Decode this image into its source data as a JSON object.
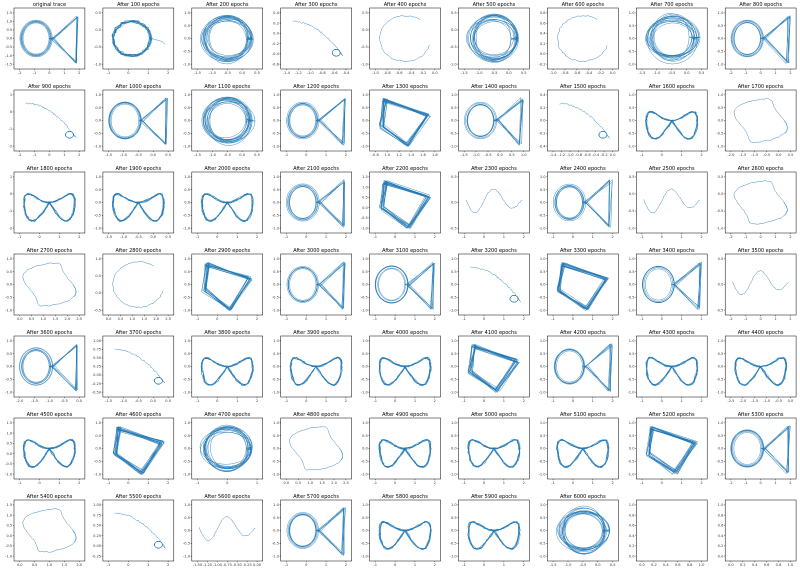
{
  "chart_data": {
    "type": "line",
    "layout": "small-multiples 9 columns x 7 rows",
    "line_color": "#1f77b4",
    "panels": [
      {
        "title": "original trace",
        "shape": "loop-triangle",
        "xticks": [
          "-2",
          "-1",
          "0",
          "1",
          "2"
        ],
        "yticks": [
          "1.5",
          "1.0",
          "0.5",
          "0.0",
          "-0.5",
          "-1.0",
          "-1.5"
        ]
      },
      {
        "title": "After 100 epochs",
        "shape": "blob-small",
        "xticks": [
          "-1",
          "0",
          "1",
          "2"
        ],
        "yticks": [
          "0.5",
          "0.0",
          "-0.5",
          "-1.0"
        ]
      },
      {
        "title": "After 200 epochs",
        "shape": "dense-circle",
        "xticks": [
          "-1.5",
          "-1.0",
          "-0.5",
          "0.0",
          "0.5"
        ],
        "yticks": [
          "1.0",
          "0.5",
          "0.0",
          "-0.5",
          "-1.0"
        ]
      },
      {
        "title": "After 300 epochs",
        "shape": "spiral-tail",
        "xticks": [
          "-1.4",
          "-1.2",
          "-1.0",
          "-0.8",
          "-0.6",
          "-0.4"
        ],
        "yticks": [
          "0.4",
          "0.2",
          "0.0",
          "-0.2",
          "-0.4",
          "-0.6"
        ]
      },
      {
        "title": "After 400 epochs",
        "shape": "open-arc",
        "xticks": [
          "-1.0",
          "-0.8",
          "-0.6",
          "-0.4",
          "-0.2",
          "0.0"
        ],
        "yticks": [
          "0.5",
          "0.0",
          "-0.5",
          "-1.0"
        ]
      },
      {
        "title": "After 500 epochs",
        "shape": "dense-circle",
        "xticks": [
          "-1.5",
          "-1.0",
          "-0.5",
          "0.0",
          "0.5"
        ],
        "yticks": [
          "0.5",
          "0.0",
          "-0.5",
          "-1.0"
        ]
      },
      {
        "title": "After 600 epochs",
        "shape": "open-arc",
        "xticks": [
          "-1.0",
          "-0.8",
          "-0.6",
          "-0.4",
          "-0.2",
          "0.0"
        ],
        "yticks": [
          "0.8",
          "0.6",
          "0.4",
          "0.2",
          "0.0",
          "-0.2"
        ]
      },
      {
        "title": "After 700 epochs",
        "shape": "dense-circle",
        "xticks": [
          "-1.5",
          "-1.0",
          "-0.5",
          "0.0",
          "0.5"
        ],
        "yticks": [
          "1.0",
          "0.5",
          "0.0",
          "-0.5",
          "-1.0"
        ]
      },
      {
        "title": "After 800 epochs",
        "shape": "loop-triangle",
        "xticks": [
          "-2",
          "-1",
          "0",
          "1",
          "2"
        ],
        "yticks": [
          "1.0",
          "0.5",
          "0.0",
          "-0.5",
          "-1.0"
        ]
      },
      {
        "title": "After 900 epochs",
        "shape": "spiral-tail",
        "xticks": [
          "-2",
          "-1",
          "0",
          "1",
          "2"
        ],
        "yticks": [
          "1",
          "0",
          "-1",
          "-2"
        ]
      },
      {
        "title": "After 1000 epochs",
        "shape": "loop-triangle",
        "xticks": [
          "-1.5",
          "-1.0",
          "-0.5",
          "0.0",
          "0.5"
        ],
        "yticks": [
          "1.0",
          "0.5",
          "0.0",
          "-0.5",
          "-1.0"
        ]
      },
      {
        "title": "After 1100 epochs",
        "shape": "dense-circle",
        "xticks": [
          "-1.5",
          "-1.0",
          "-0.5",
          "0.0",
          "0.5"
        ],
        "yticks": [
          "1.0",
          "0.5",
          "0.0",
          "-0.5",
          "-1.0"
        ]
      },
      {
        "title": "After 1200 epochs",
        "shape": "loop-triangle",
        "xticks": [
          "-1",
          "0",
          "1",
          "2"
        ],
        "yticks": [
          "1.0",
          "0.5",
          "0.0",
          "-0.5",
          "-1.0"
        ]
      },
      {
        "title": "After 1300 epochs",
        "shape": "dense-triangle",
        "xticks": [
          "-0.8",
          "1.0",
          "1.2",
          "1.4",
          "1.6",
          "1.8"
        ],
        "yticks": [
          "1.0",
          "0.5",
          "0.0",
          "-0.5",
          "-1.0"
        ]
      },
      {
        "title": "After 1400 epochs",
        "shape": "loop-triangle",
        "xticks": [
          "-1.5",
          "-1.0",
          "-0.5",
          "0.0",
          "0.5",
          "1.0"
        ],
        "yticks": [
          "1.0",
          "0.5",
          "0.0",
          "-0.5",
          "-1.0"
        ]
      },
      {
        "title": "After 1500 epochs",
        "shape": "spiral-tail",
        "xticks": [
          "-1.4",
          "-1.2",
          "-1.0",
          "-0.8",
          "-0.6",
          "-0.4",
          "-0.2",
          "0.0"
        ],
        "yticks": [
          "0.4",
          "0.2",
          "0.0",
          "-0.2",
          "-0.4"
        ]
      },
      {
        "title": "After 1600 epochs",
        "shape": "butterfly",
        "xticks": [
          "-1",
          "0",
          "1",
          "2"
        ],
        "yticks": [
          "1.0",
          "0.5",
          "0.0",
          "-0.5",
          "-1.0"
        ]
      },
      {
        "title": "After 1700 epochs",
        "shape": "open-loop",
        "xticks": [
          "-2.0",
          "-1.5",
          "-1.0",
          "-0.5",
          "0.0",
          "0.5"
        ],
        "yticks": [
          "1.0",
          "0.5",
          "0.0",
          "-0.5",
          "-1.0"
        ]
      },
      {
        "title": "After 1800 epochs",
        "shape": "butterfly",
        "xticks": [
          "-1",
          "0",
          "1",
          "2"
        ],
        "yticks": [
          "1",
          "0",
          "-1",
          "-2"
        ]
      },
      {
        "title": "After 1900 epochs",
        "shape": "butterfly",
        "xticks": [
          "-1.5",
          "-1.0",
          "-0.5",
          "0.0",
          "0.5"
        ],
        "yticks": [
          "1.0",
          "0.5",
          "0.0",
          "-0.5",
          "-1.0"
        ]
      },
      {
        "title": "After 2000 epochs",
        "shape": "butterfly",
        "xticks": [
          "-1",
          "0",
          "1",
          "2"
        ],
        "yticks": [
          "1.0",
          "0.5",
          "0.0",
          "-0.5",
          "-1.0"
        ]
      },
      {
        "title": "After 2100 epochs",
        "shape": "loop-triangle",
        "xticks": [
          "-1",
          "0",
          "1",
          "2"
        ],
        "yticks": [
          "1.0",
          "0.5",
          "0.0",
          "-0.5",
          "-1.0"
        ]
      },
      {
        "title": "After 2200 epochs",
        "shape": "dense-triangle",
        "xticks": [
          "-1",
          "0",
          "1",
          "2"
        ],
        "yticks": [
          "1.5",
          "1.0",
          "0.5",
          "0.0",
          "-0.5",
          "-1.0"
        ]
      },
      {
        "title": "After 2300 epochs",
        "shape": "wave-line",
        "xticks": [
          "-1",
          "0",
          "1",
          "2"
        ],
        "yticks": [
          "0.5",
          "0.0",
          "-0.5"
        ]
      },
      {
        "title": "After 2400 epochs",
        "shape": "loop-triangle",
        "xticks": [
          "-1",
          "0",
          "1",
          "2"
        ],
        "yticks": [
          "1.0",
          "0.5",
          "0.0",
          "-0.5",
          "-1.0"
        ]
      },
      {
        "title": "After 2500 epochs",
        "shape": "wave-line",
        "xticks": [
          "-1",
          "0",
          "1",
          "2"
        ],
        "yticks": [
          "0.5",
          "0.0",
          "-0.5",
          "-1.0"
        ]
      },
      {
        "title": "After 2600 epochs",
        "shape": "open-loop",
        "xticks": [
          "-2",
          "-1",
          "0",
          "1",
          "2"
        ],
        "yticks": [
          "0.5",
          "0.0",
          "-0.5",
          "-1.0"
        ]
      },
      {
        "title": "After 2700 epochs",
        "shape": "open-loop",
        "xticks": [
          "0.0",
          "0.5",
          "1.0",
          "1.5",
          "2.0",
          "2.5"
        ],
        "yticks": [
          "1.0",
          "0.5",
          "0.0",
          "-0.5",
          "-1.0"
        ]
      },
      {
        "title": "After 2800 epochs",
        "shape": "open-arc",
        "xticks": [
          "0.0",
          "0.5",
          "1.0",
          "1.5",
          "2.0",
          "2.5"
        ],
        "yticks": [
          "1.0",
          "0.5",
          "0.0",
          "-0.5"
        ]
      },
      {
        "title": "After 2900 epochs",
        "shape": "dense-triangle",
        "xticks": [
          "-1",
          "0",
          "1",
          "2"
        ],
        "yticks": [
          "1.0",
          "0.5",
          "0.0",
          "-0.5",
          "-1.0"
        ]
      },
      {
        "title": "After 3000 epochs",
        "shape": "loop-triangle",
        "xticks": [
          "-1",
          "0",
          "1",
          "2"
        ],
        "yticks": [
          "1.0",
          "0.5",
          "0.0",
          "-0.5",
          "-1.0"
        ]
      },
      {
        "title": "After 3100 epochs",
        "shape": "loop-triangle",
        "xticks": [
          "-1",
          "0",
          "1",
          "2"
        ],
        "yticks": [
          "1.0",
          "0.5",
          "0.0",
          "-0.5",
          "-1.0"
        ]
      },
      {
        "title": "After 3200 epochs",
        "shape": "spiral-tail",
        "xticks": [
          "-1",
          "0",
          "1",
          "2"
        ],
        "yticks": [
          "1.0",
          "0.5",
          "0.0",
          "-0.5",
          "-1.0"
        ]
      },
      {
        "title": "After 3300 epochs",
        "shape": "dense-triangle",
        "xticks": [
          "-1",
          "0",
          "1",
          "2"
        ],
        "yticks": [
          "1.0",
          "0.5",
          "0.0",
          "-0.5",
          "-1.0"
        ]
      },
      {
        "title": "After 3400 epochs",
        "shape": "loop-triangle",
        "xticks": [
          "-1",
          "0",
          "1",
          "2"
        ],
        "yticks": [
          "1.0",
          "0.5",
          "0.0",
          "-0.5",
          "-1.0"
        ]
      },
      {
        "title": "After 3500 epochs",
        "shape": "wave-line",
        "xticks": [
          "-2",
          "-1",
          "0",
          "1",
          "2"
        ],
        "yticks": [
          "0.5",
          "0.0",
          "-0.5"
        ]
      },
      {
        "title": "After 3600 epochs",
        "shape": "loop-triangle",
        "xticks": [
          "-2.0",
          "-1.5",
          "-1.0",
          "-0.5",
          "0.0"
        ],
        "yticks": [
          "1.0",
          "0.5",
          "0.0",
          "-0.5",
          "-1.0"
        ]
      },
      {
        "title": "After 3700 epochs",
        "shape": "spiral-tail",
        "xticks": [
          "-1.5",
          "-1.0",
          "-0.5",
          "0.0",
          "0.5"
        ],
        "yticks": [
          "1.00",
          "0.75",
          "0.50",
          "0.25",
          "0.00",
          "-0.25",
          "-0.50"
        ]
      },
      {
        "title": "After 3800 epochs",
        "shape": "butterfly",
        "xticks": [
          "-1",
          "0",
          "1",
          "2"
        ],
        "yticks": [
          "1.0",
          "0.5",
          "0.0",
          "-0.5",
          "-1.0"
        ]
      },
      {
        "title": "After 3900 epochs",
        "shape": "butterfly",
        "xticks": [
          "-1",
          "0",
          "1",
          "2"
        ],
        "yticks": [
          "1.0",
          "0.5",
          "0.0",
          "-0.5",
          "-1.0"
        ]
      },
      {
        "title": "After 4000 epochs",
        "shape": "butterfly",
        "xticks": [
          "-1",
          "0",
          "1",
          "2"
        ],
        "yticks": [
          "1.0",
          "0.5",
          "0.0",
          "-0.5",
          "-1.0"
        ]
      },
      {
        "title": "After 4100 epochs",
        "shape": "dense-triangle",
        "xticks": [
          "-1",
          "0",
          "1",
          "2"
        ],
        "yticks": [
          "1.0",
          "0.5",
          "0.0",
          "-0.5",
          "-1.0"
        ]
      },
      {
        "title": "After 4200 epochs",
        "shape": "loop-triangle",
        "xticks": [
          "-1",
          "0",
          "1",
          "2"
        ],
        "yticks": [
          "1.0",
          "0.5",
          "0.0",
          "-0.5",
          "-1.0"
        ]
      },
      {
        "title": "After 4300 epochs",
        "shape": "butterfly",
        "xticks": [
          "-1",
          "0",
          "1",
          "2"
        ],
        "yticks": [
          "1.0",
          "0.5",
          "0.0",
          "-0.5",
          "-1.0"
        ]
      },
      {
        "title": "After 4400 epochs",
        "shape": "butterfly",
        "xticks": [
          "-2.5",
          "-2.0",
          "-1.5",
          "-1.0",
          "-0.5",
          "0.0"
        ],
        "yticks": [
          "1.0",
          "0.5",
          "0.0",
          "-0.5",
          "-1.0"
        ]
      },
      {
        "title": "After 4500 epochs",
        "shape": "butterfly",
        "xticks": [
          "-1",
          "0",
          "1",
          "2"
        ],
        "yticks": [
          "1.5",
          "1.0",
          "0.5",
          "0.0",
          "-0.5",
          "-1.0"
        ]
      },
      {
        "title": "After 4600 epochs",
        "shape": "dense-triangle",
        "xticks": [
          "-1",
          "0",
          "1",
          "2"
        ],
        "yticks": [
          "1.0",
          "0.5",
          "0.0",
          "-0.5",
          "-1.0"
        ]
      },
      {
        "title": "After 4700 epochs",
        "shape": "dense-circle",
        "xticks": [
          "-1",
          "0",
          "1"
        ],
        "yticks": [
          "1.0",
          "0.5",
          "0.0",
          "-0.5",
          "-1.0"
        ]
      },
      {
        "title": "After 4800 epochs",
        "shape": "open-loop",
        "xticks": [
          "0.0",
          "0.5",
          "1.0",
          "1.5",
          "2.0",
          "2.5"
        ],
        "yticks": [
          "1.0",
          "0.5",
          "0.0",
          "-0.5",
          "-1.0"
        ]
      },
      {
        "title": "After 4900 epochs",
        "shape": "butterfly",
        "xticks": [
          "-1",
          "0",
          "1",
          "2"
        ],
        "yticks": [
          "1.0",
          "0.5",
          "0.0",
          "-0.5",
          "-1.0"
        ]
      },
      {
        "title": "After 5000 epochs",
        "shape": "butterfly",
        "xticks": [
          "-1",
          "0",
          "1",
          "2"
        ],
        "yticks": [
          "1.0",
          "0.5",
          "0.0",
          "-0.5",
          "-1.0"
        ]
      },
      {
        "title": "After 5100 epochs",
        "shape": "butterfly",
        "xticks": [
          "-1",
          "0",
          "1",
          "2"
        ],
        "yticks": [
          "1.0",
          "0.5",
          "0.0",
          "-0.5",
          "-1.0"
        ]
      },
      {
        "title": "After 5200 epochs",
        "shape": "dense-triangle",
        "xticks": [
          "-1",
          "0",
          "1",
          "2"
        ],
        "yticks": [
          "1.0",
          "0.5",
          "0.0",
          "-0.5",
          "-1.0"
        ]
      },
      {
        "title": "After 5300 epochs",
        "shape": "loop-triangle",
        "xticks": [
          "-2",
          "-1",
          "0",
          "1",
          "2"
        ],
        "yticks": [
          "1.0",
          "0.5",
          "0.0",
          "-0.5",
          "-1.0"
        ]
      },
      {
        "title": "After 5400 epochs",
        "shape": "open-loop",
        "xticks": [
          "0.0",
          "0.5",
          "1.0",
          "1.5",
          "2.0"
        ],
        "yticks": [
          "1.5",
          "1.0",
          "0.5",
          "0.0",
          "-0.5",
          "-1.0"
        ]
      },
      {
        "title": "After 5500 epochs",
        "shape": "spiral-tail",
        "xticks": [
          "-1",
          "0",
          "1",
          "2"
        ],
        "yticks": [
          "1.00",
          "0.75",
          "0.50",
          "0.25",
          "0.00",
          "-0.25"
        ]
      },
      {
        "title": "After 5600 epochs",
        "shape": "wave-line",
        "xticks": [
          "-1.50",
          "-1.25",
          "-1.00",
          "-0.75",
          "-0.50",
          "-0.25",
          "0.00"
        ],
        "yticks": [
          "1.0",
          "0.5",
          "0.0",
          "-0.5",
          "-1.0"
        ]
      },
      {
        "title": "After 5700 epochs",
        "shape": "loop-triangle",
        "xticks": [
          "-1",
          "0",
          "1",
          "2"
        ],
        "yticks": [
          "1.0",
          "0.5",
          "0.0",
          "-0.5",
          "-1.0"
        ]
      },
      {
        "title": "After 5800 epochs",
        "shape": "butterfly",
        "xticks": [
          "-1",
          "0",
          "1",
          "2"
        ],
        "yticks": [
          "1.0",
          "0.5",
          "0.0",
          "-0.5",
          "-1.0"
        ]
      },
      {
        "title": "After 5900 epochs",
        "shape": "butterfly",
        "xticks": [
          "-1",
          "0",
          "1",
          "2"
        ],
        "yticks": [
          "1.0",
          "0.5",
          "0.0",
          "-0.5",
          "-1.0"
        ]
      },
      {
        "title": "After 6000 epochs",
        "shape": "dense-circle",
        "xticks": [
          "-1.5",
          "-1.0",
          "-0.5",
          "0.0",
          "0.5"
        ],
        "yticks": [
          "1.0",
          "0.5",
          "0.0",
          "-0.5",
          "-1.0"
        ]
      },
      {
        "title": "",
        "shape": "empty",
        "xticks": [
          "0.0",
          "0.2",
          "0.4",
          "0.6",
          "0.8",
          "1.0"
        ],
        "yticks": [
          "1.0",
          "0.8",
          "0.6",
          "0.4",
          "0.2",
          "0.0"
        ]
      },
      {
        "title": "",
        "shape": "empty",
        "xticks": [
          "0.0",
          "0.2",
          "0.4",
          "0.6",
          "0.8",
          "1.0"
        ],
        "yticks": [
          "1.0",
          "0.8",
          "0.6",
          "0.4",
          "0.2",
          "0.0"
        ]
      }
    ]
  }
}
